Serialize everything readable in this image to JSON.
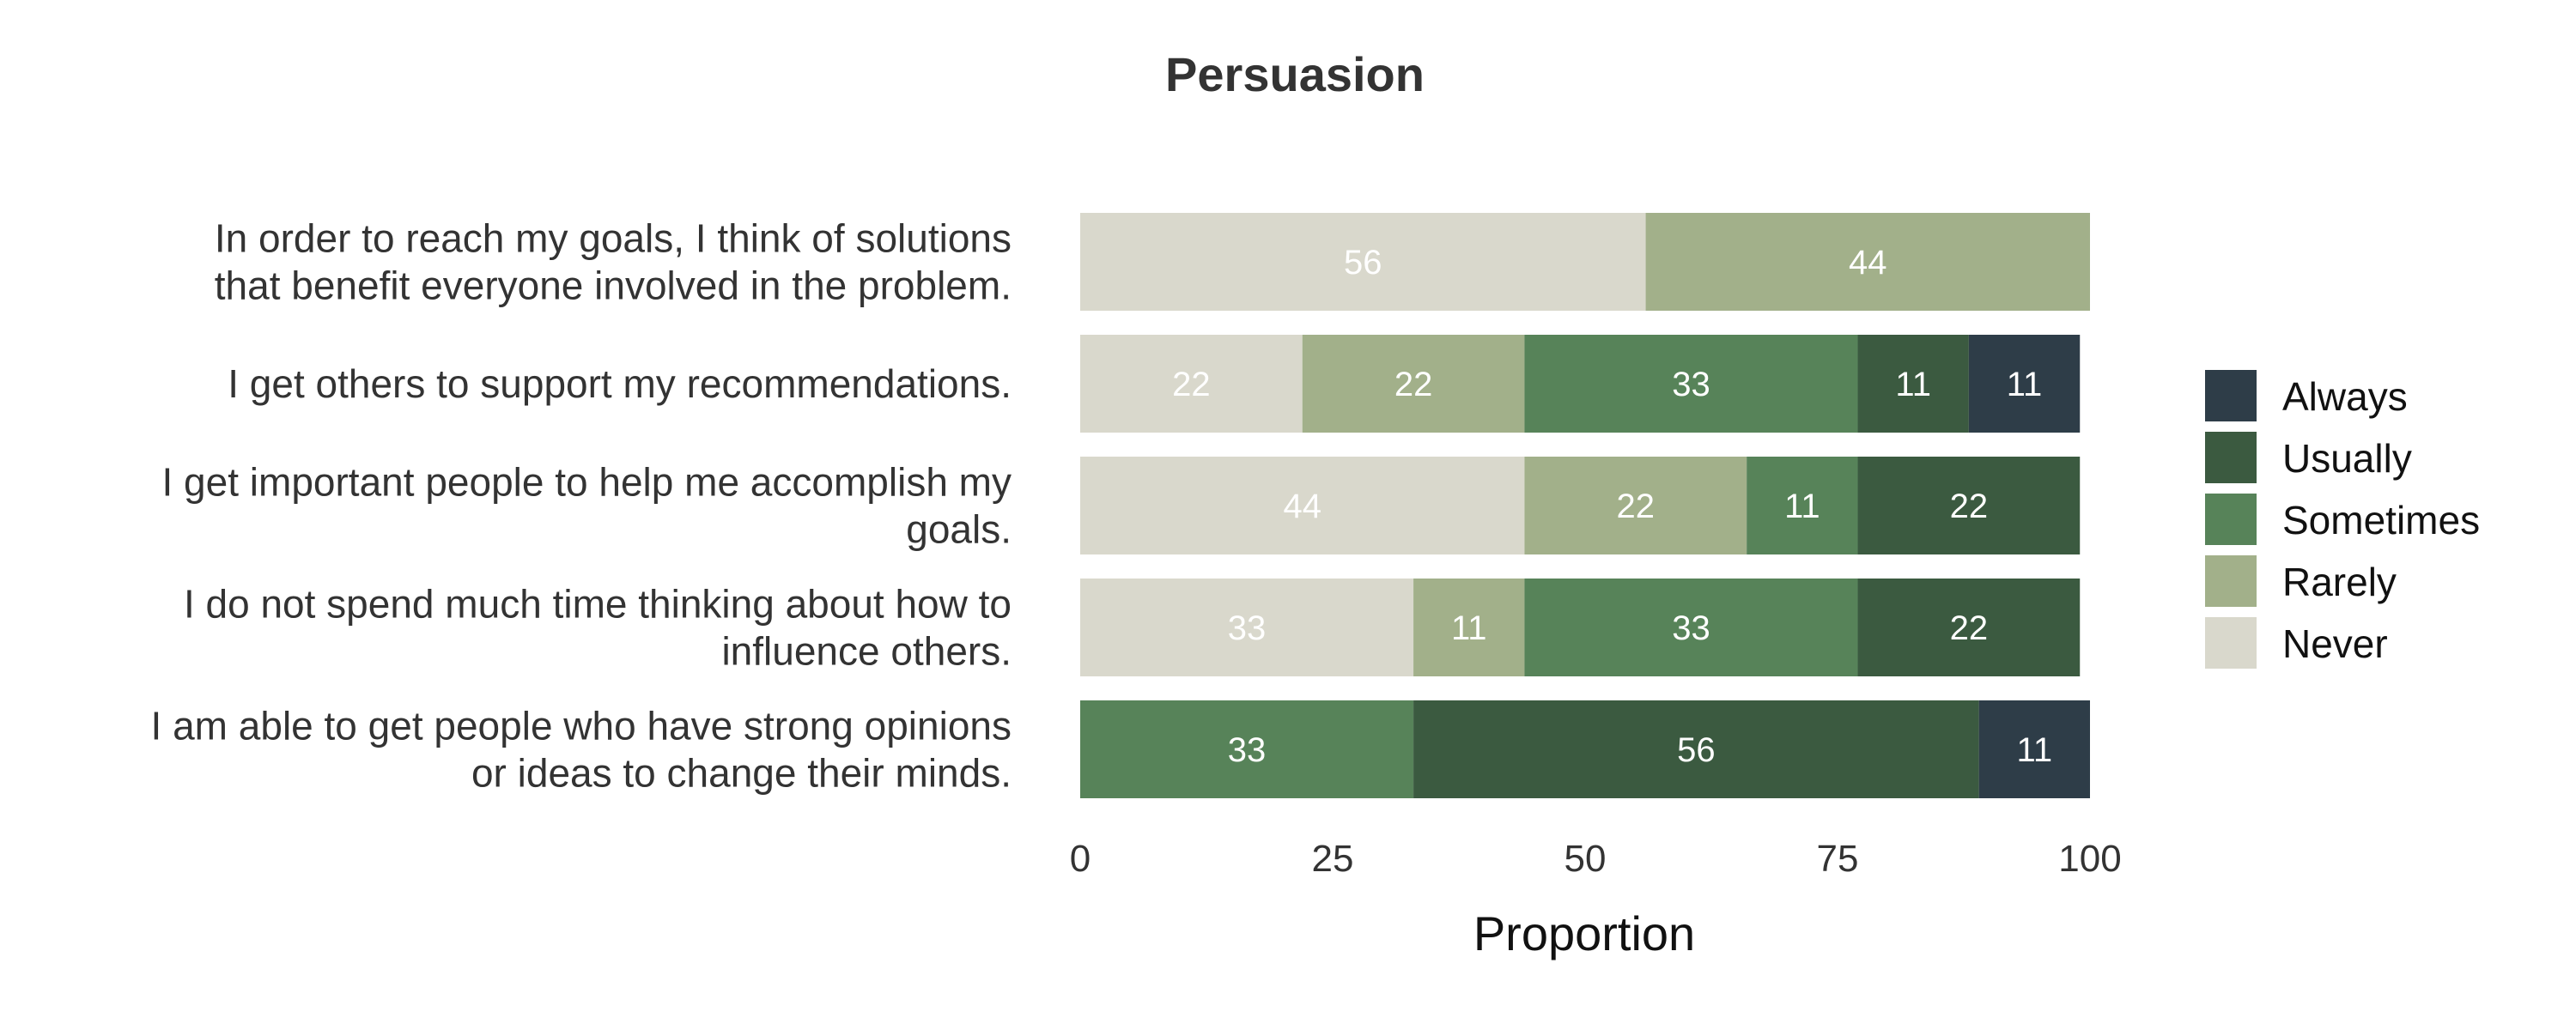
{
  "chart_data": {
    "type": "bar",
    "orientation": "horizontal",
    "stacked": true,
    "title": "Persuasion",
    "xlabel": "Proportion",
    "ylabel": "",
    "xlim": [
      0,
      100
    ],
    "xticks": [
      "0",
      "25",
      "50",
      "75",
      "100"
    ],
    "grid": false,
    "legend_position": "right",
    "categories": [
      [
        "In order to reach my goals, I think of solutions",
        "that benefit everyone involved in the problem."
      ],
      [
        "I get others to support my recommendations."
      ],
      [
        "I get important people to help me accomplish my",
        "goals."
      ],
      [
        "I do not spend much time thinking about how to",
        "influence others."
      ],
      [
        "I am able to get people who have strong opinions",
        "or ideas to change their minds."
      ]
    ],
    "series": [
      {
        "name": "Never",
        "color": "#d9d8cc",
        "values": [
          56,
          22,
          44,
          33,
          0
        ]
      },
      {
        "name": "Rarely",
        "color": "#a2b08a",
        "values": [
          44,
          22,
          22,
          11,
          0
        ]
      },
      {
        "name": "Sometimes",
        "color": "#578359",
        "values": [
          0,
          33,
          11,
          33,
          33
        ]
      },
      {
        "name": "Usually",
        "color": "#3b5a40",
        "values": [
          0,
          11,
          22,
          22,
          56
        ]
      },
      {
        "name": "Always",
        "color": "#2e3d48",
        "values": [
          0,
          11,
          0,
          0,
          11
        ]
      }
    ],
    "legend_order": [
      "Always",
      "Usually",
      "Sometimes",
      "Rarely",
      "Never"
    ]
  }
}
